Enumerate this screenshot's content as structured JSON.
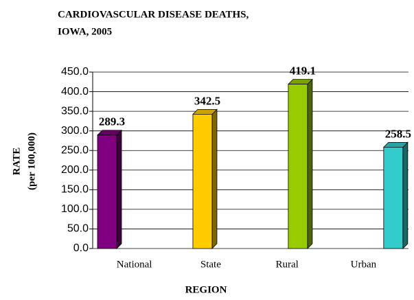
{
  "chart_data": {
    "type": "bar",
    "title": [
      "CARDIOVASCULAR DISEASE DEATHS,",
      "IOWA, 2005"
    ],
    "x_label": "REGION",
    "y_label": [
      "RATE",
      "(per 100,000)"
    ],
    "categories": [
      "National",
      "State",
      "Rural",
      "Urban"
    ],
    "values": [
      289.3,
      342.5,
      419.1,
      258.5
    ],
    "colors": [
      "#800080",
      "#ffcc00",
      "#99cc00",
      "#33cccc"
    ],
    "ylim": [
      0,
      450
    ],
    "yticks": [
      {
        "value": 0,
        "label": "0.0"
      },
      {
        "value": 50,
        "label": "50.0"
      },
      {
        "value": 100,
        "label": "100.0"
      },
      {
        "value": 150,
        "label": "150.0"
      },
      {
        "value": 200,
        "label": "200.0"
      },
      {
        "value": 250,
        "label": "250.0"
      },
      {
        "value": 300,
        "label": "300.0"
      },
      {
        "value": 350,
        "label": "350.0"
      },
      {
        "value": 400,
        "label": "400.0"
      },
      {
        "value": 450,
        "label": "450.0"
      }
    ],
    "grid": true
  }
}
